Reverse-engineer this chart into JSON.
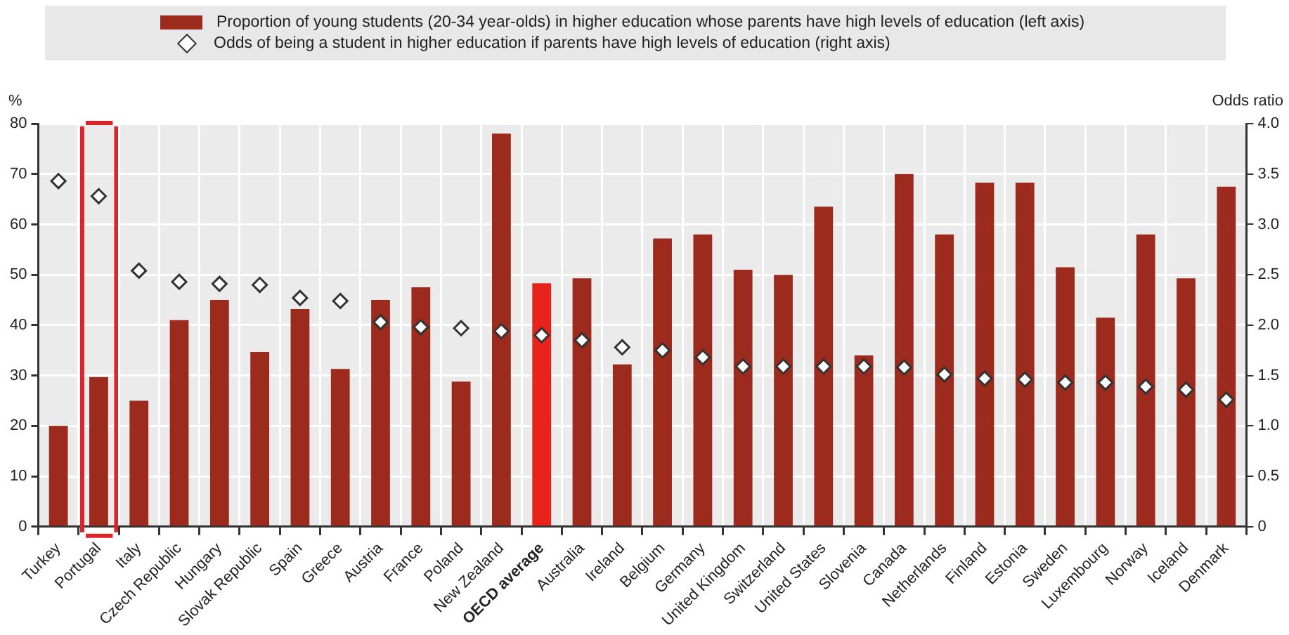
{
  "chart_data": {
    "type": "bar",
    "ylabel": "%",
    "y2label": "Odds ratio",
    "legend": "top",
    "grid": true,
    "categories": [
      "Turkey",
      "Portugal",
      "Italy",
      "Czech Republic",
      "Hungary",
      "Slovak Republic",
      "Spain",
      "Greece",
      "Austria",
      "France",
      "Poland",
      "New Zealand",
      "OECD average",
      "Australia",
      "Ireland",
      "Belgium",
      "Germany",
      "United Kingdom",
      "Switzerland",
      "United States",
      "Slovenia",
      "Canada",
      "Netherlands",
      "Finland",
      "Estonia",
      "Sweden",
      "Luxembourg",
      "Norway",
      "Iceland",
      "Denmark"
    ],
    "ylim": [
      0,
      80
    ],
    "yticks": [
      0,
      10,
      20,
      30,
      40,
      50,
      60,
      70,
      80
    ],
    "y2lim": [
      0,
      4
    ],
    "y2ticks": [
      0,
      0.5,
      {
        "value": 1,
        "label": "1.0"
      },
      1.5,
      {
        "value": 2,
        "label": "2.0"
      },
      2.5,
      {
        "value": 3,
        "label": "3.0"
      },
      3.5,
      {
        "value": 4,
        "label": "4.0"
      }
    ],
    "series": [
      {
        "type": "bar",
        "name": "Proportion of young students (20-34 year-olds) in higher education whose parents have high levels of education (left axis)",
        "color": "#9c2a1d",
        "colors": [
          "#9c2a1d",
          "#9c2a1d",
          "#9c2a1d",
          "#9c2a1d",
          "#9c2a1d",
          "#9c2a1d",
          "#9c2a1d",
          "#9c2a1d",
          "#9c2a1d",
          "#9c2a1d",
          "#9c2a1d",
          "#9c2a1d",
          "#e8231e",
          "#9c2a1d",
          "#9c2a1d",
          "#9c2a1d",
          "#9c2a1d",
          "#9c2a1d",
          "#9c2a1d",
          "#9c2a1d",
          "#9c2a1d",
          "#9c2a1d",
          "#9c2a1d",
          "#9c2a1d",
          "#9c2a1d",
          "#9c2a1d",
          "#9c2a1d",
          "#9c2a1d",
          "#9c2a1d",
          "#9c2a1d"
        ],
        "values": [
          20,
          29.7,
          25,
          41,
          45,
          34.7,
          43.2,
          31.3,
          45,
          47.5,
          28.8,
          78,
          48.3,
          49.3,
          32.2,
          57.2,
          58,
          51,
          50,
          63.5,
          34,
          70,
          58,
          68.3,
          68.3,
          51.5,
          41.5,
          58,
          49.3,
          67.5
        ]
      },
      {
        "type": "scatter",
        "axis": "y2",
        "marker": "diamond",
        "name": "Odds of being a student in higher education if parents have high levels of education (right axis)",
        "color": "#333333",
        "values": [
          3.43,
          3.28,
          2.54,
          2.43,
          2.41,
          2.4,
          2.27,
          2.24,
          2.03,
          1.98,
          1.97,
          1.94,
          1.9,
          1.85,
          1.78,
          1.75,
          1.68,
          1.59,
          1.59,
          1.59,
          1.59,
          1.58,
          1.51,
          1.47,
          1.46,
          1.43,
          1.43,
          1.39,
          1.36,
          1.26
        ]
      }
    ]
  }
}
